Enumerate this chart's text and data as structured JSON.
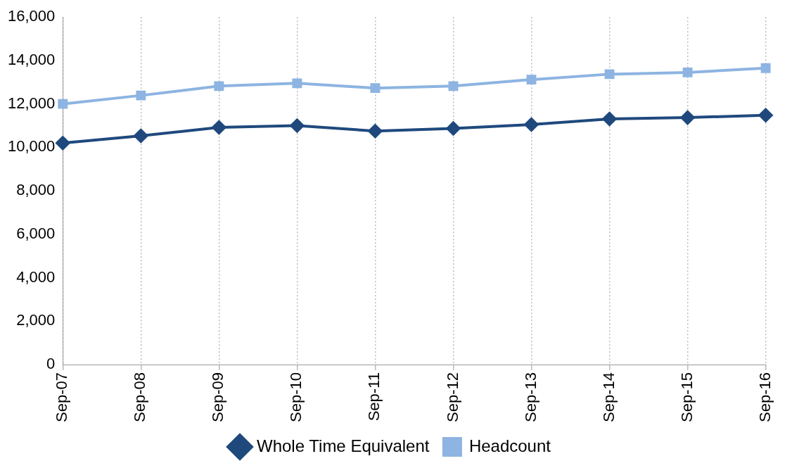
{
  "chart_data": {
    "type": "line",
    "categories": [
      "Sep-07",
      "Sep-08",
      "Sep-09",
      "Sep-10",
      "Sep-11",
      "Sep-12",
      "Sep-13",
      "Sep-14",
      "Sep-15",
      "Sep-16"
    ],
    "series": [
      {
        "name": "Whole Time Equivalent",
        "color": "#1f497d",
        "marker": "diamond",
        "values": [
          10200,
          10530,
          10920,
          11000,
          10750,
          10870,
          11050,
          11310,
          11370,
          11480
        ]
      },
      {
        "name": "Headcount",
        "color": "#8db4e2",
        "marker": "square",
        "values": [
          12000,
          12390,
          12820,
          12950,
          12730,
          12820,
          13120,
          13370,
          13450,
          13650
        ]
      }
    ],
    "ylim": [
      0,
      16000
    ],
    "yticks": [
      0,
      {
        "value": 2000,
        "label": "2,000"
      },
      {
        "value": 4000,
        "label": "4,000"
      },
      {
        "value": 6000,
        "label": "6,000"
      },
      {
        "value": 8000,
        "label": "8,000"
      },
      {
        "value": 10000,
        "label": "10,000"
      },
      {
        "value": 12000,
        "label": "12,000"
      },
      {
        "value": 14000,
        "label": "14,000"
      },
      {
        "value": 16000,
        "label": "16,000"
      }
    ],
    "grid": "x",
    "legend": "bottom"
  }
}
